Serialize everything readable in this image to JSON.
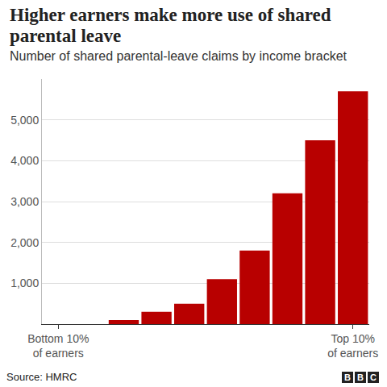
{
  "chart_data": {
    "type": "bar",
    "title": "Higher earners make more use of shared parental leave",
    "subtitle": "Number of shared parental-leave claims by income bracket",
    "source": "Source: HMRC",
    "logo": "BBC",
    "categories": [
      "Bottom 10% of earners",
      null,
      null,
      null,
      null,
      null,
      null,
      null,
      null,
      "Top 10% of earners"
    ],
    "values": [
      0,
      0,
      100,
      300,
      500,
      1100,
      1800,
      3200,
      4500,
      5700
    ],
    "color": "#b80000",
    "ylim": [
      0,
      6000
    ],
    "yticks": [
      {
        "value": 1000,
        "label": "1,000"
      },
      {
        "value": 2000,
        "label": "2,000"
      },
      {
        "value": 3000,
        "label": "3,000"
      },
      {
        "value": 4000,
        "label": "4,000"
      },
      {
        "value": 5000,
        "label": "5,000"
      }
    ],
    "grid": true
  }
}
